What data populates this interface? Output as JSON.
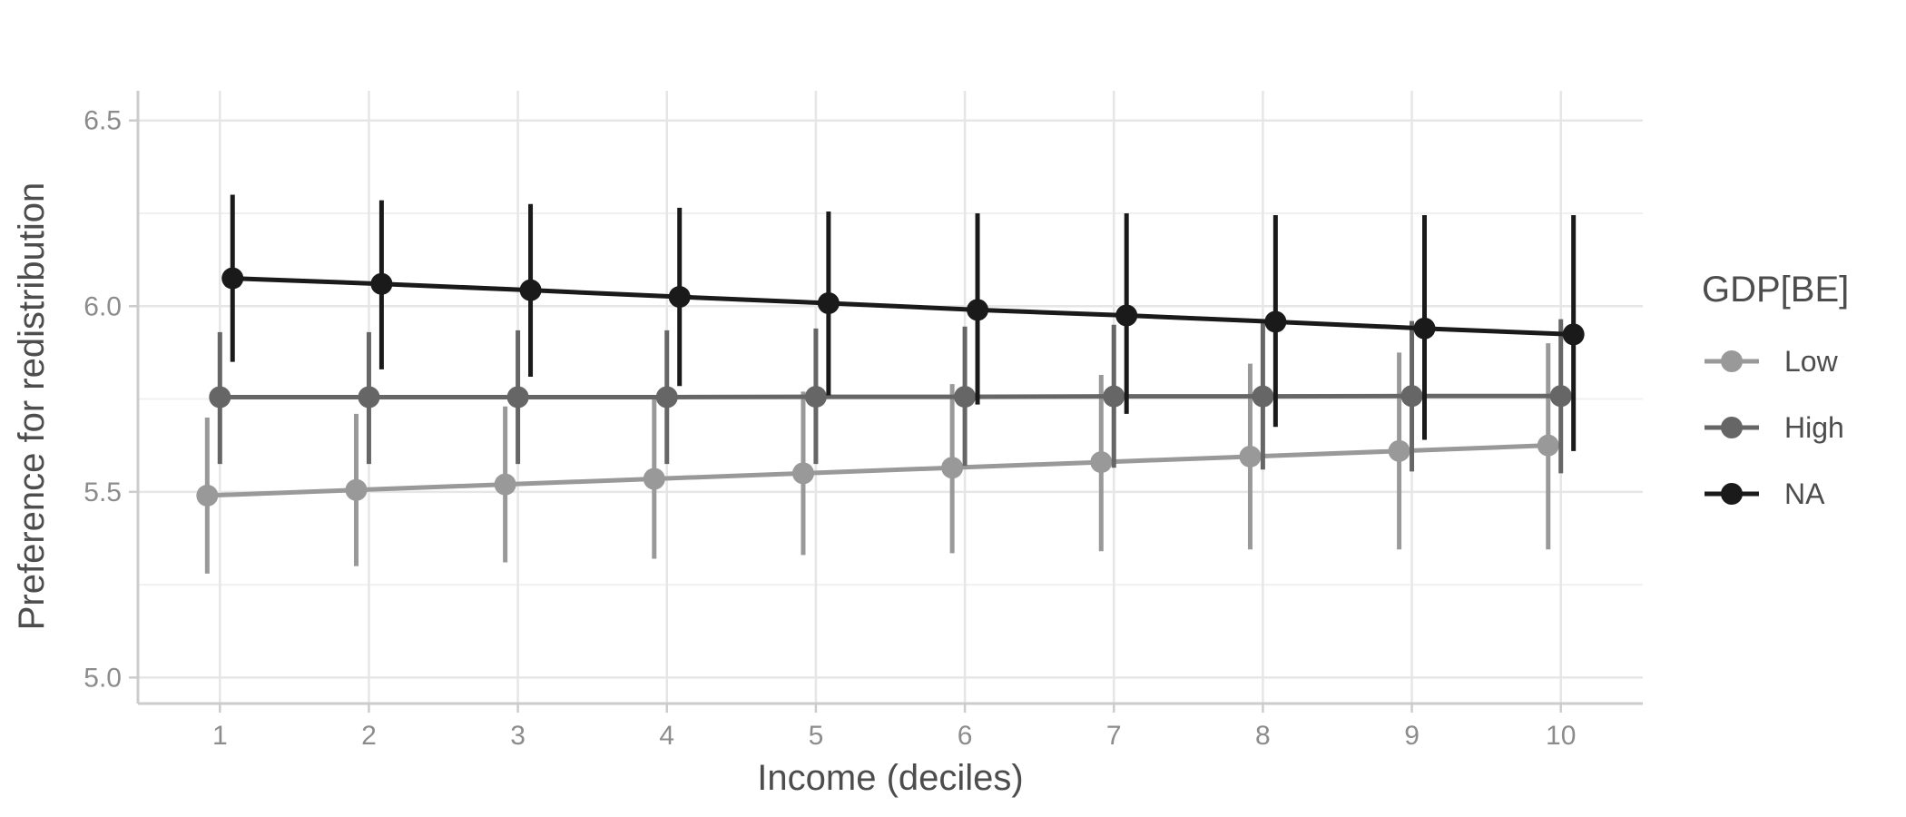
{
  "chart_data": {
    "type": "line",
    "xlabel": "Income (deciles)",
    "ylabel": "Preference for redistribution",
    "x": [
      1,
      2,
      3,
      4,
      5,
      6,
      7,
      8,
      9,
      10
    ],
    "xlim": [
      0.45,
      10.55
    ],
    "ylim": [
      4.93,
      6.58
    ],
    "yticks": [
      5.0,
      5.5,
      6.0,
      6.5
    ],
    "grid": true,
    "legend": {
      "title": "GDP[BE]",
      "position": "right"
    },
    "series": [
      {
        "name": "Low",
        "color": "#999999",
        "values": [
          5.49,
          5.505,
          5.52,
          5.535,
          5.55,
          5.565,
          5.58,
          5.595,
          5.61,
          5.625
        ],
        "lower": [
          5.28,
          5.3,
          5.31,
          5.32,
          5.33,
          5.335,
          5.34,
          5.345,
          5.345,
          5.345
        ],
        "upper": [
          5.7,
          5.71,
          5.73,
          5.75,
          5.77,
          5.79,
          5.815,
          5.845,
          5.875,
          5.9
        ]
      },
      {
        "name": "High",
        "color": "#666666",
        "values": [
          5.755,
          5.755,
          5.755,
          5.755,
          5.756,
          5.756,
          5.757,
          5.757,
          5.758,
          5.758
        ],
        "lower": [
          5.575,
          5.575,
          5.575,
          5.575,
          5.575,
          5.57,
          5.565,
          5.56,
          5.555,
          5.55
        ],
        "upper": [
          5.93,
          5.93,
          5.935,
          5.935,
          5.94,
          5.945,
          5.95,
          5.955,
          5.96,
          5.965
        ]
      },
      {
        "name": "NA",
        "color": "#1a1a1a",
        "values": [
          6.075,
          6.06,
          6.043,
          6.025,
          6.008,
          5.99,
          5.975,
          5.958,
          5.94,
          5.924
        ],
        "lower": [
          5.85,
          5.83,
          5.81,
          5.785,
          5.76,
          5.735,
          5.71,
          5.675,
          5.64,
          5.61
        ],
        "upper": [
          6.3,
          6.285,
          6.275,
          6.265,
          6.255,
          6.25,
          6.25,
          6.245,
          6.245,
          6.245
        ]
      }
    ]
  }
}
